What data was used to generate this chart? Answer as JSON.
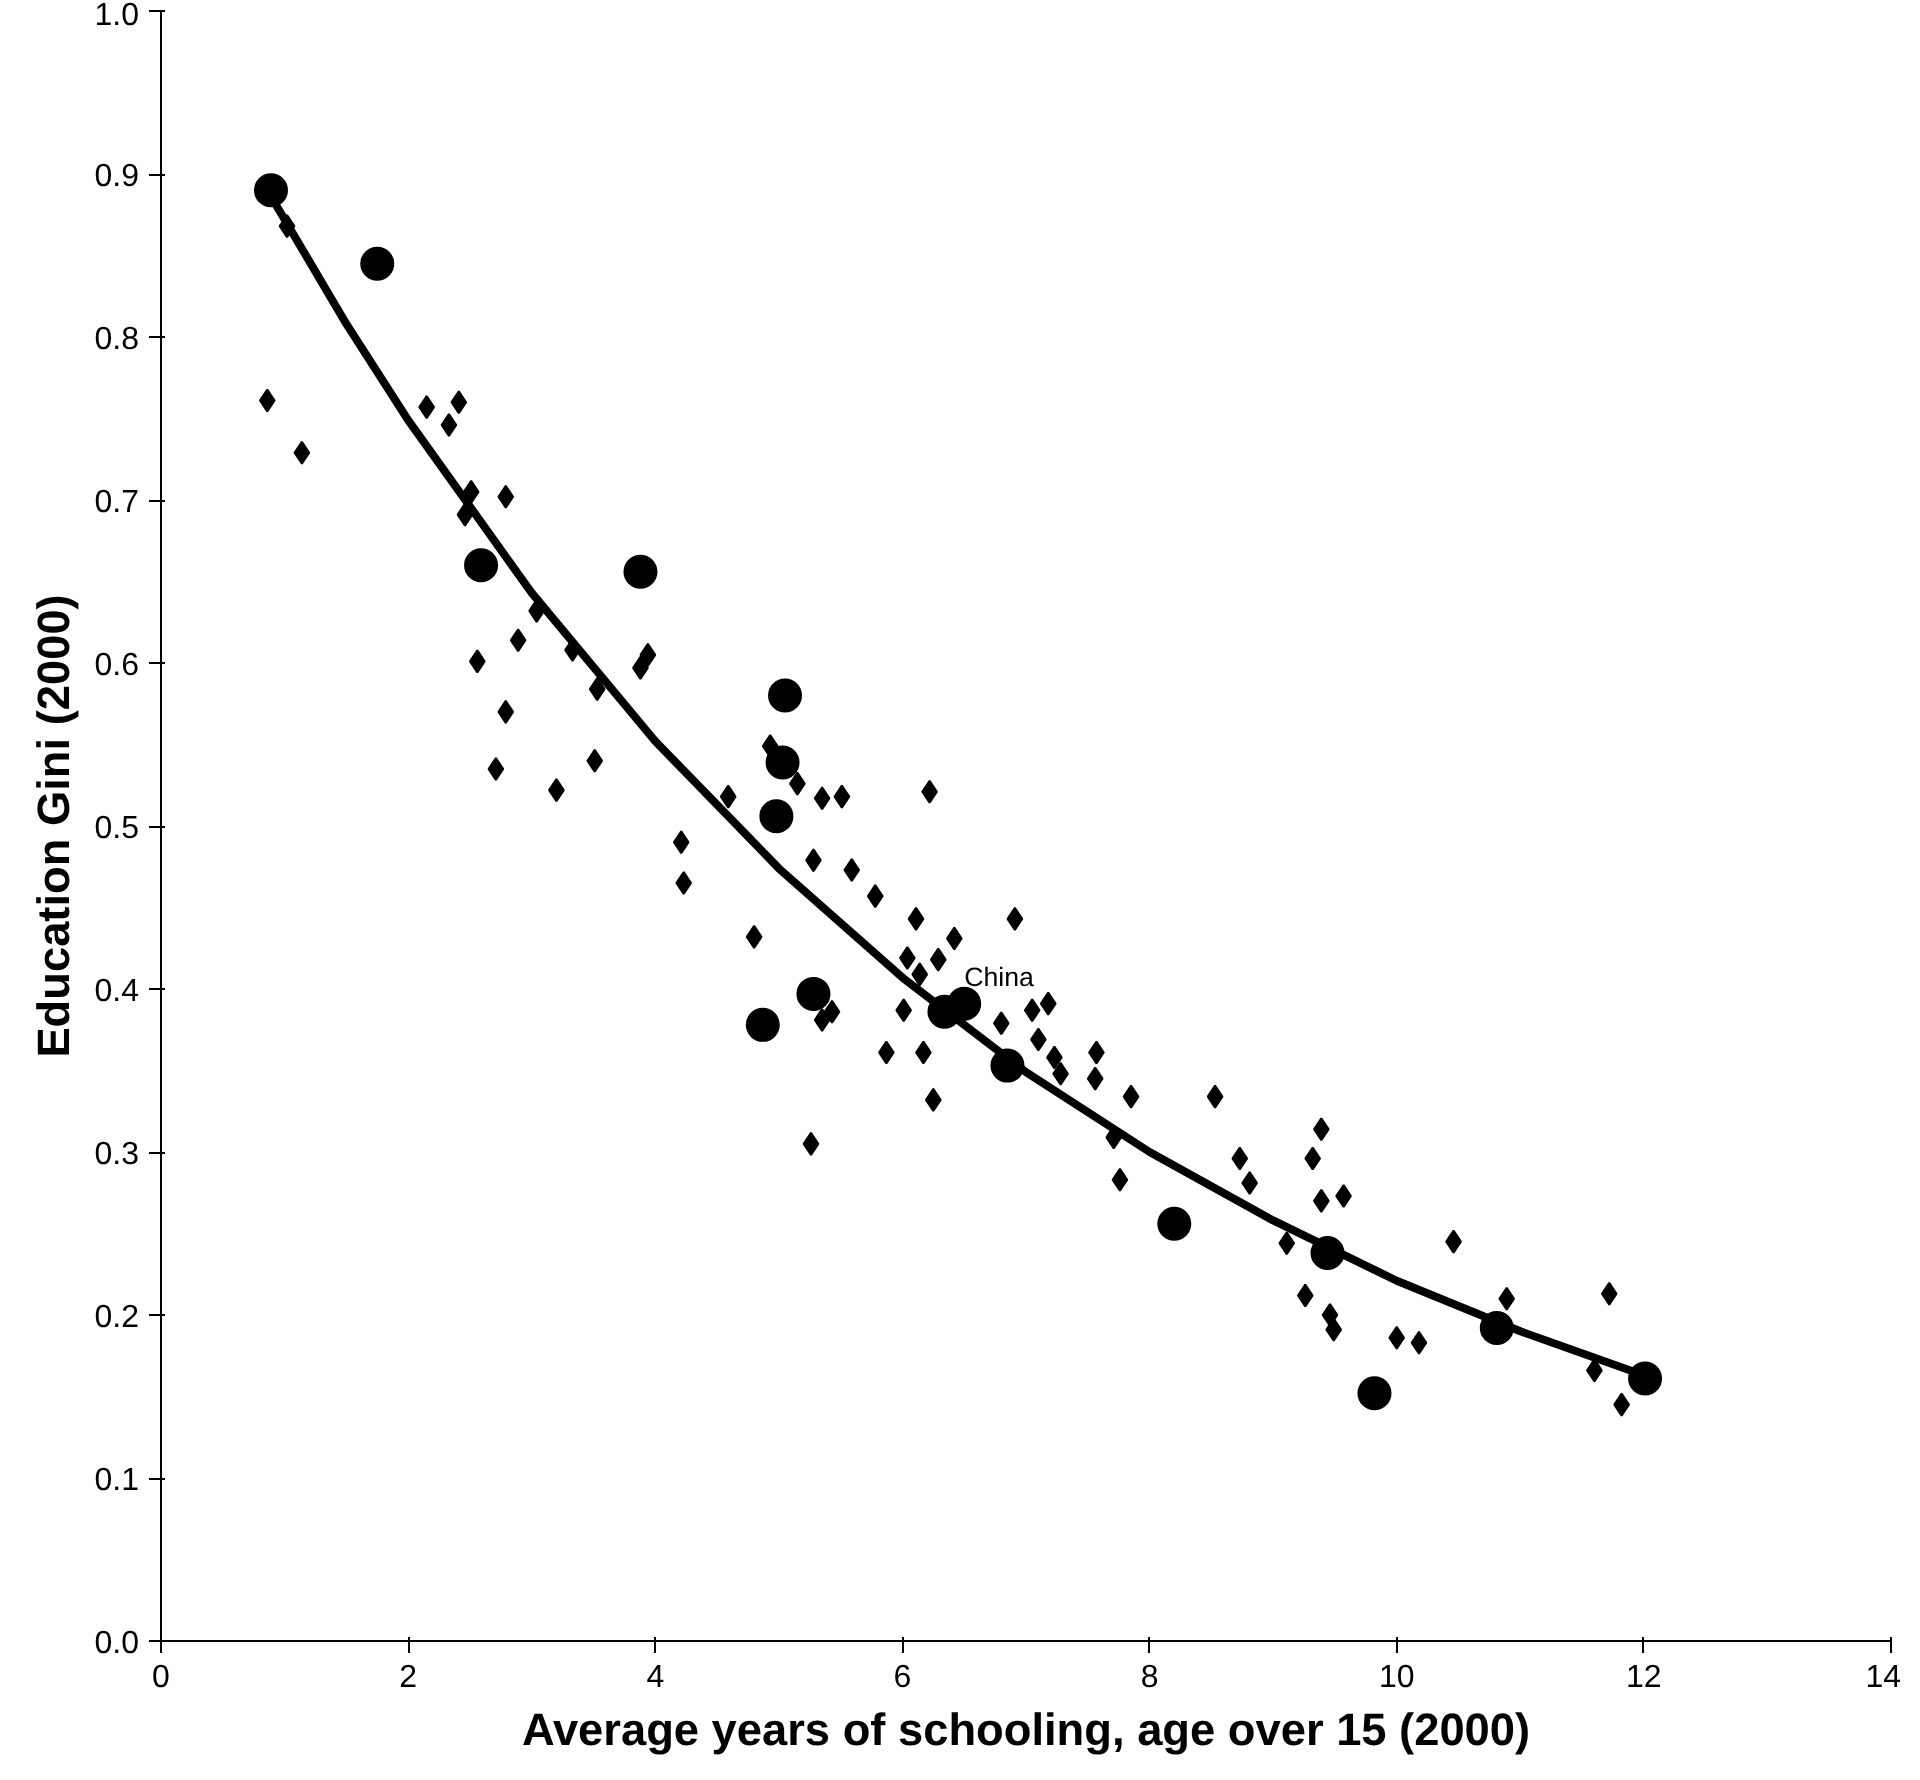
{
  "chart_data": {
    "type": "scatter",
    "xlabel": "Average years of schooling, age over 15 (2000)",
    "ylabel": "Education Gini (2000)",
    "xlim": [
      0,
      14
    ],
    "ylim": [
      0,
      1.0
    ],
    "xticks": [
      0,
      2,
      4,
      6,
      8,
      10,
      12,
      14
    ],
    "yticks": [
      {
        "value": 0,
        "label": "0.0"
      },
      0.1,
      0.2,
      0.3,
      0.4,
      0.5,
      0.6,
      0.7,
      0.8,
      0.9,
      {
        "value": 1.0,
        "label": "1.0"
      }
    ],
    "grid": false,
    "annotations": [
      {
        "text": "China",
        "x": 6.5,
        "y": 0.391
      }
    ],
    "series": [
      {
        "marker": "diamond",
        "color": "#000000",
        "x": [
          1.02,
          0.86,
          1.14,
          2.15,
          2.41,
          2.33,
          2.51,
          2.79,
          2.46,
          3.04,
          2.89,
          3.33,
          2.56,
          3.94,
          3.88,
          3.53,
          2.79,
          2.71,
          3.51,
          3.2,
          4.59,
          4.93,
          5.15,
          5.35,
          5.51,
          6.22,
          4.21,
          4.23,
          5.28,
          5.59,
          5.78,
          6.11,
          6.42,
          6.91,
          6.29,
          6.04,
          6.14,
          4.8,
          6.01,
          5.43,
          5.35,
          7.05,
          7.18,
          6.8,
          7.1,
          7.23,
          7.57,
          7.56,
          7.28,
          5.87,
          6.17,
          6.25,
          7.85,
          8.53,
          7.71,
          5.26,
          8.73,
          7.76,
          8.81,
          9.39,
          9.32,
          9.39,
          9.57,
          9.11,
          10.46,
          10.89,
          11.72,
          9.26,
          9.46,
          9.49,
          10.0,
          10.18,
          11.6,
          11.82
        ],
        "values": [
          0.868,
          0.761,
          0.729,
          0.757,
          0.76,
          0.746,
          0.705,
          0.702,
          0.691,
          0.632,
          0.614,
          0.608,
          0.601,
          0.605,
          0.597,
          0.584,
          0.57,
          0.535,
          0.54,
          0.522,
          0.518,
          0.549,
          0.526,
          0.517,
          0.518,
          0.521,
          0.49,
          0.465,
          0.479,
          0.473,
          0.457,
          0.443,
          0.431,
          0.443,
          0.418,
          0.419,
          0.409,
          0.432,
          0.387,
          0.386,
          0.381,
          0.387,
          0.391,
          0.379,
          0.369,
          0.358,
          0.361,
          0.345,
          0.348,
          0.361,
          0.361,
          0.332,
          0.334,
          0.334,
          0.309,
          0.305,
          0.296,
          0.283,
          0.281,
          0.314,
          0.296,
          0.27,
          0.273,
          0.244,
          0.245,
          0.21,
          0.213,
          0.212,
          0.2,
          0.191,
          0.186,
          0.183,
          0.166,
          0.145
        ]
      },
      {
        "marker": "circle",
        "color": "#000000",
        "x": [
          0.89,
          1.75,
          2.59,
          3.88,
          5.05,
          5.03,
          4.98,
          5.28,
          4.87,
          6.34,
          6.5,
          6.85,
          8.2,
          9.44,
          10.81,
          12.01,
          9.82
        ],
        "values": [
          0.89,
          0.845,
          0.66,
          0.656,
          0.58,
          0.539,
          0.506,
          0.397,
          0.378,
          0.386,
          0.391,
          0.353,
          0.256,
          0.238,
          0.192,
          0.161,
          0.152
        ]
      },
      {
        "type": "line",
        "line_style": "solid",
        "color": "#000000",
        "x": [
          0.9,
          1.5,
          2,
          3,
          4,
          5,
          6,
          7,
          8,
          9,
          10,
          11,
          12
        ],
        "values": [
          0.885,
          0.808,
          0.749,
          0.643,
          0.552,
          0.474,
          0.407,
          0.349,
          0.3,
          0.258,
          0.221,
          0.19,
          0.163
        ]
      }
    ]
  }
}
